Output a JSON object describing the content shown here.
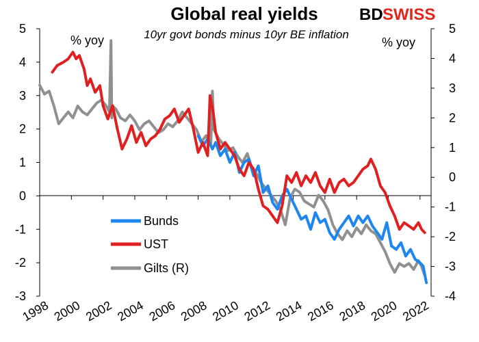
{
  "logo": {
    "part1": "BD",
    "part2": "SWISS",
    "color": "#e1261c"
  },
  "chart_data": {
    "type": "line",
    "title": "Global real yields",
    "subtitle": "10yr govt bonds minus 10yr BE inflation",
    "left_axis_label": "% yoy",
    "right_axis_label": "% yoy",
    "x_range": [
      1998,
      2022.7
    ],
    "x_ticks": [
      "1998",
      "2000",
      "2002",
      "2004",
      "2006",
      "2008",
      "2010",
      "2012",
      "2014",
      "2016",
      "2018",
      "2020",
      "2022"
    ],
    "y_left": {
      "range": [
        -3,
        5
      ],
      "ticks": [
        "5",
        "4",
        "3",
        "2",
        "1",
        "0",
        "-1",
        "-2",
        "-3"
      ]
    },
    "y_right": {
      "range": [
        -4,
        5
      ],
      "ticks": [
        "5",
        "4",
        "3",
        "2",
        "1",
        "0",
        "-1",
        "-2",
        "-3",
        "-4"
      ]
    },
    "series": [
      {
        "name": "Bunds",
        "axis": "left",
        "color": "#1e86f0",
        "x": [
          2008.0,
          2008.3,
          2008.6,
          2008.9,
          2009.1,
          2009.4,
          2009.7,
          2010.0,
          2010.3,
          2010.6,
          2010.9,
          2011.2,
          2011.5,
          2011.8,
          2012.1,
          2012.4,
          2012.7,
          2013.0,
          2013.3,
          2013.6,
          2013.9,
          2014.2,
          2014.5,
          2014.8,
          2015.1,
          2015.4,
          2015.7,
          2016.0,
          2016.3,
          2016.6,
          2016.9,
          2017.2,
          2017.5,
          2017.8,
          2018.1,
          2018.4,
          2018.7,
          2019.0,
          2019.3,
          2019.6,
          2019.9,
          2020.2,
          2020.5,
          2020.8,
          2021.1,
          2021.4,
          2021.7,
          2022.0,
          2022.2,
          2022.4
        ],
        "values": [
          1.8,
          1.5,
          1.7,
          1.4,
          1.6,
          1.2,
          1.4,
          1.0,
          1.3,
          0.7,
          1.0,
          1.1,
          0.6,
          0.9,
          0.1,
          0.3,
          -0.2,
          -0.4,
          0.0,
          0.2,
          -0.1,
          -0.4,
          -0.7,
          -0.6,
          -1.0,
          -0.5,
          -0.8,
          -0.7,
          -1.1,
          -1.3,
          -1.0,
          -0.8,
          -0.6,
          -0.9,
          -0.6,
          -0.8,
          -0.6,
          -0.9,
          -1.1,
          -1.3,
          -0.8,
          -1.5,
          -1.6,
          -1.4,
          -1.8,
          -1.6,
          -1.9,
          -2.0,
          -2.1,
          -2.6
        ]
      },
      {
        "name": "UST",
        "axis": "left",
        "color": "#e02020",
        "x": [
          1998.8,
          1999.1,
          1999.5,
          1999.8,
          2000.1,
          2000.3,
          2000.5,
          2000.8,
          2001.0,
          2001.2,
          2001.5,
          2001.8,
          2002.0,
          2002.3,
          2002.6,
          2002.9,
          2003.2,
          2003.5,
          2003.8,
          2004.1,
          2004.4,
          2004.7,
          2005.0,
          2005.3,
          2005.6,
          2005.9,
          2006.2,
          2006.5,
          2006.8,
          2007.1,
          2007.4,
          2007.7,
          2008.0,
          2008.3,
          2008.6,
          2008.75,
          2008.95,
          2009.1,
          2009.4,
          2009.7,
          2010.0,
          2010.3,
          2010.6,
          2010.9,
          2011.2,
          2011.5,
          2011.8,
          2012.1,
          2012.4,
          2012.7,
          2013.0,
          2013.3,
          2013.6,
          2013.9,
          2014.2,
          2014.5,
          2014.8,
          2015.1,
          2015.4,
          2015.7,
          2016.0,
          2016.3,
          2016.6,
          2016.9,
          2017.2,
          2017.5,
          2017.8,
          2018.1,
          2018.4,
          2018.7,
          2018.9,
          2019.2,
          2019.5,
          2019.8,
          2020.1,
          2020.4,
          2020.7,
          2021.0,
          2021.3,
          2021.6,
          2021.9,
          2022.1,
          2022.3
        ],
        "values": [
          3.7,
          3.9,
          4.0,
          4.1,
          4.3,
          4.1,
          4.2,
          3.8,
          3.3,
          3.5,
          3.1,
          3.3,
          2.7,
          2.3,
          2.7,
          2.0,
          1.4,
          1.7,
          2.1,
          1.6,
          1.9,
          1.5,
          1.7,
          1.8,
          2.0,
          2.3,
          2.4,
          2.6,
          2.2,
          2.4,
          2.6,
          2.0,
          1.3,
          1.6,
          1.2,
          3.0,
          2.5,
          1.9,
          1.4,
          1.6,
          1.4,
          1.2,
          0.8,
          0.6,
          1.0,
          0.8,
          0.2,
          -0.3,
          -0.4,
          -0.6,
          -0.8,
          -0.3,
          0.6,
          0.4,
          0.7,
          0.3,
          0.6,
          0.4,
          0.7,
          0.3,
          0.1,
          0.5,
          0.1,
          0.4,
          0.5,
          0.3,
          0.4,
          0.6,
          0.8,
          0.9,
          1.1,
          0.8,
          0.3,
          0.1,
          -0.3,
          -0.6,
          -1.0,
          -0.8,
          -0.9,
          -1.0,
          -0.8,
          -1.0,
          -1.1
        ]
      },
      {
        "name": "Gilts (R)",
        "axis": "right",
        "color": "#909090",
        "x": [
          1998.0,
          1998.3,
          1998.6,
          1998.9,
          1999.2,
          1999.5,
          1999.8,
          2000.1,
          2000.4,
          2000.7,
          2001.0,
          2001.3,
          2001.6,
          2001.9,
          2002.2,
          2002.4,
          2002.5,
          2002.55,
          2002.6,
          2002.8,
          2003.1,
          2003.4,
          2003.7,
          2004.0,
          2004.3,
          2004.6,
          2004.9,
          2005.2,
          2005.5,
          2005.8,
          2006.1,
          2006.4,
          2006.7,
          2007.0,
          2007.3,
          2007.6,
          2007.9,
          2008.2,
          2008.5,
          2008.8,
          2008.9,
          2009.0,
          2009.3,
          2009.6,
          2009.9,
          2010.2,
          2010.5,
          2010.8,
          2011.1,
          2011.4,
          2011.7,
          2012.0,
          2012.3,
          2012.6,
          2012.9,
          2013.2,
          2013.5,
          2013.8,
          2014.1,
          2014.4,
          2014.7,
          2015.0,
          2015.3,
          2015.6,
          2015.9,
          2016.2,
          2016.5,
          2016.8,
          2017.1,
          2017.4,
          2017.7,
          2018.0,
          2018.3,
          2018.6,
          2018.9,
          2019.2,
          2019.5,
          2019.8,
          2020.1,
          2020.4,
          2020.7,
          2021.0,
          2021.3,
          2021.6,
          2021.9,
          2022.1,
          2022.3
        ],
        "values": [
          3.1,
          2.8,
          2.9,
          2.4,
          1.8,
          2.0,
          2.2,
          2.0,
          2.4,
          2.2,
          2.1,
          2.3,
          2.5,
          2.6,
          2.4,
          2.2,
          4.6,
          2.0,
          2.4,
          2.3,
          2.0,
          1.9,
          2.1,
          1.9,
          1.6,
          1.8,
          1.9,
          1.7,
          1.5,
          1.6,
          1.8,
          1.7,
          1.9,
          2.2,
          2.0,
          1.8,
          1.6,
          1.2,
          1.4,
          1.1,
          2.9,
          1.6,
          1.3,
          1.1,
          0.9,
          1.0,
          0.7,
          0.5,
          0.8,
          0.3,
          0.1,
          -0.2,
          -0.4,
          -0.6,
          -0.8,
          -1.1,
          -1.6,
          -0.7,
          -0.4,
          -0.5,
          -0.8,
          -0.9,
          -1.0,
          -0.6,
          -0.8,
          -1.1,
          -1.6,
          -1.9,
          -2.1,
          -1.8,
          -2.0,
          -1.7,
          -1.9,
          -1.6,
          -1.8,
          -1.9,
          -2.2,
          -2.5,
          -2.9,
          -3.2,
          -2.9,
          -3.0,
          -2.9,
          -3.1,
          -2.8,
          -3.0,
          -3.3
        ]
      }
    ],
    "legend_position": "lower-left"
  }
}
